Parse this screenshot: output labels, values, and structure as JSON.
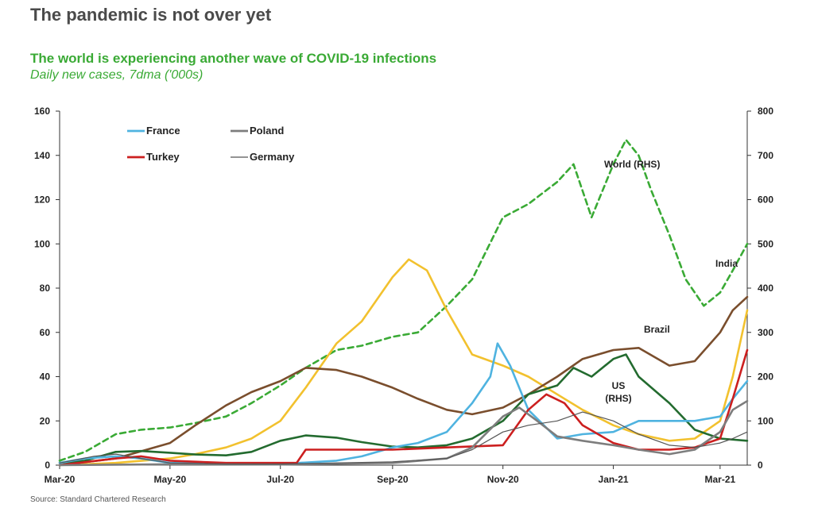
{
  "header": {
    "headline": "The pandemic is not over yet",
    "subtitle": "The world is experiencing another wave of COVID-19 infections",
    "subtitle2": "Daily new cases, 7dma ('000s)",
    "source": "Source: Standard Chartered Research"
  },
  "chart_data": {
    "type": "line",
    "x_ticks": [
      "Mar-20",
      "May-20",
      "Jul-20",
      "Sep-20",
      "Nov-20",
      "Jan-21",
      "Mar-21"
    ],
    "x_tick_dates": [
      "2020-03-01",
      "2020-05-01",
      "2020-07-01",
      "2020-09-01",
      "2020-11-01",
      "2021-01-01",
      "2021-03-01"
    ],
    "x_range": [
      "2020-03-01",
      "2021-03-16"
    ],
    "y_left": {
      "ticks": [
        "0",
        "20",
        "40",
        "60",
        "80",
        "100",
        "120",
        "140",
        "160"
      ],
      "range": [
        0,
        160
      ]
    },
    "y_right": {
      "ticks": [
        "0",
        "100",
        "200",
        "300",
        "400",
        "500",
        "600",
        "700",
        "800"
      ],
      "range": [
        0,
        800
      ]
    },
    "legend": [
      "France",
      "Poland",
      "Turkey",
      "Germany"
    ],
    "legend_position": "top-left",
    "annotations": {
      "world": "World (RHS)",
      "india": "India",
      "brazil": "Brazil",
      "us": "US\n(RHS)"
    },
    "series": [
      {
        "name": "World (RHS)",
        "axis": "right",
        "color": "#3aaa35",
        "dash": true,
        "points": [
          [
            "2020-03-01",
            10
          ],
          [
            "2020-03-15",
            30
          ],
          [
            "2020-04-01",
            70
          ],
          [
            "2020-04-15",
            80
          ],
          [
            "2020-05-01",
            85
          ],
          [
            "2020-05-15",
            95
          ],
          [
            "2020-06-01",
            110
          ],
          [
            "2020-06-15",
            140
          ],
          [
            "2020-07-01",
            180
          ],
          [
            "2020-07-15",
            220
          ],
          [
            "2020-08-01",
            260
          ],
          [
            "2020-08-15",
            270
          ],
          [
            "2020-09-01",
            290
          ],
          [
            "2020-09-15",
            300
          ],
          [
            "2020-10-01",
            360
          ],
          [
            "2020-10-15",
            420
          ],
          [
            "2020-11-01",
            560
          ],
          [
            "2020-11-15",
            590
          ],
          [
            "2020-12-01",
            640
          ],
          [
            "2020-12-10",
            680
          ],
          [
            "2020-12-20",
            560
          ],
          [
            "2021-01-01",
            680
          ],
          [
            "2021-01-08",
            735
          ],
          [
            "2021-01-15",
            700
          ],
          [
            "2021-01-22",
            620
          ],
          [
            "2021-02-01",
            520
          ],
          [
            "2021-02-10",
            420
          ],
          [
            "2021-02-20",
            360
          ],
          [
            "2021-03-01",
            390
          ],
          [
            "2021-03-08",
            440
          ],
          [
            "2021-03-16",
            500
          ]
        ]
      },
      {
        "name": "India",
        "axis": "left",
        "color": "#f2c12e",
        "dash": false,
        "points": [
          [
            "2020-03-01",
            0
          ],
          [
            "2020-04-01",
            1
          ],
          [
            "2020-05-01",
            3
          ],
          [
            "2020-05-15",
            5
          ],
          [
            "2020-06-01",
            8
          ],
          [
            "2020-06-15",
            12
          ],
          [
            "2020-07-01",
            20
          ],
          [
            "2020-07-15",
            35
          ],
          [
            "2020-08-01",
            55
          ],
          [
            "2020-08-15",
            65
          ],
          [
            "2020-09-01",
            85
          ],
          [
            "2020-09-10",
            93
          ],
          [
            "2020-09-20",
            88
          ],
          [
            "2020-10-01",
            70
          ],
          [
            "2020-10-15",
            50
          ],
          [
            "2020-11-01",
            45
          ],
          [
            "2020-11-15",
            40
          ],
          [
            "2020-12-01",
            32
          ],
          [
            "2020-12-15",
            25
          ],
          [
            "2021-01-01",
            18
          ],
          [
            "2021-01-15",
            14
          ],
          [
            "2021-02-01",
            11
          ],
          [
            "2021-02-15",
            12
          ],
          [
            "2021-03-01",
            20
          ],
          [
            "2021-03-08",
            40
          ],
          [
            "2021-03-16",
            70
          ]
        ]
      },
      {
        "name": "Brazil",
        "axis": "left",
        "color": "#7a4e2d",
        "dash": false,
        "points": [
          [
            "2020-03-01",
            0
          ],
          [
            "2020-04-01",
            3
          ],
          [
            "2020-05-01",
            10
          ],
          [
            "2020-05-15",
            18
          ],
          [
            "2020-06-01",
            27
          ],
          [
            "2020-06-15",
            33
          ],
          [
            "2020-07-01",
            38
          ],
          [
            "2020-07-15",
            44
          ],
          [
            "2020-08-01",
            43
          ],
          [
            "2020-08-15",
            40
          ],
          [
            "2020-09-01",
            35
          ],
          [
            "2020-09-15",
            30
          ],
          [
            "2020-10-01",
            25
          ],
          [
            "2020-10-15",
            23
          ],
          [
            "2020-11-01",
            26
          ],
          [
            "2020-11-15",
            32
          ],
          [
            "2020-12-01",
            40
          ],
          [
            "2020-12-15",
            48
          ],
          [
            "2021-01-01",
            52
          ],
          [
            "2021-01-15",
            53
          ],
          [
            "2021-02-01",
            45
          ],
          [
            "2021-02-15",
            47
          ],
          [
            "2021-03-01",
            60
          ],
          [
            "2021-03-08",
            70
          ],
          [
            "2021-03-16",
            76
          ]
        ]
      },
      {
        "name": "US (RHS)",
        "axis": "right",
        "color": "#236b2f",
        "dash": false,
        "points": [
          [
            "2020-03-01",
            5
          ],
          [
            "2020-03-15",
            10
          ],
          [
            "2020-04-01",
            30
          ],
          [
            "2020-04-15",
            32
          ],
          [
            "2020-05-01",
            28
          ],
          [
            "2020-05-15",
            24
          ],
          [
            "2020-06-01",
            22
          ],
          [
            "2020-06-15",
            30
          ],
          [
            "2020-07-01",
            55
          ],
          [
            "2020-07-15",
            67
          ],
          [
            "2020-08-01",
            62
          ],
          [
            "2020-08-15",
            52
          ],
          [
            "2020-09-01",
            42
          ],
          [
            "2020-09-15",
            40
          ],
          [
            "2020-10-01",
            45
          ],
          [
            "2020-10-15",
            60
          ],
          [
            "2020-11-01",
            100
          ],
          [
            "2020-11-15",
            160
          ],
          [
            "2020-12-01",
            180
          ],
          [
            "2020-12-10",
            220
          ],
          [
            "2020-12-20",
            200
          ],
          [
            "2021-01-01",
            240
          ],
          [
            "2021-01-08",
            250
          ],
          [
            "2021-01-15",
            200
          ],
          [
            "2021-02-01",
            140
          ],
          [
            "2021-02-15",
            80
          ],
          [
            "2021-03-01",
            60
          ],
          [
            "2021-03-16",
            55
          ]
        ]
      },
      {
        "name": "France",
        "axis": "left",
        "color": "#4fb3e0",
        "dash": false,
        "points": [
          [
            "2020-03-01",
            1
          ],
          [
            "2020-03-15",
            3
          ],
          [
            "2020-04-01",
            4
          ],
          [
            "2020-04-15",
            3
          ],
          [
            "2020-05-01",
            1
          ],
          [
            "2020-06-01",
            0.5
          ],
          [
            "2020-07-01",
            0.5
          ],
          [
            "2020-08-01",
            2
          ],
          [
            "2020-08-15",
            4
          ],
          [
            "2020-09-01",
            8
          ],
          [
            "2020-09-15",
            10
          ],
          [
            "2020-10-01",
            15
          ],
          [
            "2020-10-15",
            28
          ],
          [
            "2020-10-25",
            40
          ],
          [
            "2020-10-29",
            55
          ],
          [
            "2020-11-05",
            45
          ],
          [
            "2020-11-15",
            25
          ],
          [
            "2020-12-01",
            12
          ],
          [
            "2020-12-15",
            14
          ],
          [
            "2021-01-01",
            15
          ],
          [
            "2021-01-15",
            20
          ],
          [
            "2021-02-01",
            20
          ],
          [
            "2021-02-15",
            20
          ],
          [
            "2021-03-01",
            22
          ],
          [
            "2021-03-08",
            30
          ],
          [
            "2021-03-16",
            38
          ]
        ]
      },
      {
        "name": "Turkey",
        "axis": "left",
        "color": "#cc1f1f",
        "dash": false,
        "points": [
          [
            "2020-03-01",
            0
          ],
          [
            "2020-04-01",
            3
          ],
          [
            "2020-04-15",
            4
          ],
          [
            "2020-05-01",
            2
          ],
          [
            "2020-06-01",
            1
          ],
          [
            "2020-07-01",
            1
          ],
          [
            "2020-07-10",
            1
          ],
          [
            "2020-07-15",
            7
          ],
          [
            "2020-08-01",
            7
          ],
          [
            "2020-09-01",
            7
          ],
          [
            "2020-10-01",
            8
          ],
          [
            "2020-11-01",
            9
          ],
          [
            "2020-11-15",
            25
          ],
          [
            "2020-11-25",
            32
          ],
          [
            "2020-12-05",
            28
          ],
          [
            "2020-12-15",
            18
          ],
          [
            "2021-01-01",
            10
          ],
          [
            "2021-01-15",
            7
          ],
          [
            "2021-02-01",
            7
          ],
          [
            "2021-02-15",
            8
          ],
          [
            "2021-03-01",
            12
          ],
          [
            "2021-03-08",
            30
          ],
          [
            "2021-03-16",
            52
          ]
        ]
      },
      {
        "name": "Poland",
        "axis": "left",
        "color": "#7d7d7d",
        "dash": false,
        "points": [
          [
            "2020-03-01",
            0
          ],
          [
            "2020-05-01",
            0.4
          ],
          [
            "2020-07-01",
            0.3
          ],
          [
            "2020-09-01",
            1
          ],
          [
            "2020-10-01",
            3
          ],
          [
            "2020-10-15",
            8
          ],
          [
            "2020-11-01",
            22
          ],
          [
            "2020-11-10",
            26
          ],
          [
            "2020-11-20",
            20
          ],
          [
            "2020-12-01",
            13
          ],
          [
            "2020-12-15",
            11
          ],
          [
            "2021-01-01",
            9
          ],
          [
            "2021-01-15",
            7
          ],
          [
            "2021-02-01",
            5
          ],
          [
            "2021-02-15",
            7
          ],
          [
            "2021-03-01",
            15
          ],
          [
            "2021-03-08",
            25
          ],
          [
            "2021-03-16",
            29
          ]
        ]
      },
      {
        "name": "Germany",
        "axis": "left",
        "color": "#555555",
        "dash": false,
        "thin": true,
        "points": [
          [
            "2020-03-01",
            1
          ],
          [
            "2020-03-20",
            4
          ],
          [
            "2020-04-01",
            5
          ],
          [
            "2020-04-15",
            3
          ],
          [
            "2020-05-01",
            1
          ],
          [
            "2020-06-01",
            0.5
          ],
          [
            "2020-07-01",
            0.5
          ],
          [
            "2020-08-01",
            1
          ],
          [
            "2020-09-01",
            1.5
          ],
          [
            "2020-10-01",
            3
          ],
          [
            "2020-10-15",
            7
          ],
          [
            "2020-11-01",
            15
          ],
          [
            "2020-11-15",
            18
          ],
          [
            "2020-12-01",
            20
          ],
          [
            "2020-12-15",
            24
          ],
          [
            "2021-01-01",
            20
          ],
          [
            "2021-01-15",
            14
          ],
          [
            "2021-02-01",
            9
          ],
          [
            "2021-02-15",
            8
          ],
          [
            "2021-03-01",
            10
          ],
          [
            "2021-03-08",
            12
          ],
          [
            "2021-03-16",
            15
          ]
        ]
      }
    ]
  }
}
